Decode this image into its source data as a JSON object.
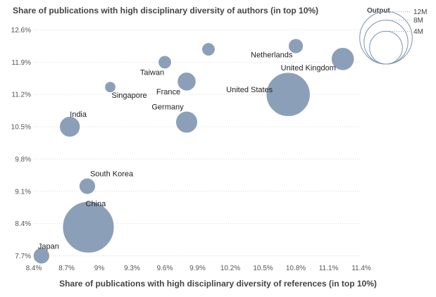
{
  "chart_data": {
    "type": "scatter",
    "title": "Share of publications with high disciplinary diversity of authors (in top 10%)",
    "xlabel": "Share of publications with high disciplinary diversity of references (in top 10%)",
    "ylabel": "Share of publications with high disciplinary diversity of authors (in top 10%)",
    "xlim": [
      8.4,
      11.4
    ],
    "ylim": [
      7.6,
      12.7
    ],
    "x_ticks": [
      "8.4%",
      "8.7%",
      "9%",
      "9.3%",
      "9.6%",
      "9.9%",
      "10.2%",
      "10.5%",
      "10.8%",
      "11.1%",
      "11.4%"
    ],
    "x_tick_values": [
      8.4,
      8.7,
      9.0,
      9.3,
      9.6,
      9.9,
      10.2,
      10.5,
      10.8,
      11.1,
      11.4
    ],
    "y_ticks": [
      "7.7%",
      "8.4%",
      "9.1%",
      "9.8%",
      "10.5%",
      "11.2%",
      "11.9%",
      "12.6%"
    ],
    "y_tick_values": [
      7.7,
      8.4,
      9.1,
      9.8,
      10.5,
      11.2,
      11.9,
      12.6
    ],
    "grid": true,
    "size_legend": {
      "title": "Output",
      "entries": [
        {
          "label": "12M",
          "value": 12
        },
        {
          "label": "8M",
          "value": 8
        },
        {
          "label": "4M",
          "value": 4
        }
      ]
    },
    "points": [
      {
        "label": "Japan",
        "x": 8.47,
        "y": 7.7,
        "output": 0.6
      },
      {
        "label": "China",
        "x": 8.9,
        "y": 8.32,
        "output": 11.5
      },
      {
        "label": "South Korea",
        "x": 8.89,
        "y": 9.21,
        "output": 0.6
      },
      {
        "label": "India",
        "x": 8.73,
        "y": 10.5,
        "output": 1.2
      },
      {
        "label": "Germany",
        "x": 9.8,
        "y": 10.6,
        "output": 1.4
      },
      {
        "label": "Singapore",
        "x": 9.1,
        "y": 11.36,
        "output": 0.15
      },
      {
        "label": "France",
        "x": 9.8,
        "y": 11.48,
        "output": 0.9
      },
      {
        "label": "Taiwan",
        "x": 9.6,
        "y": 11.9,
        "output": 0.3
      },
      {
        "label": "",
        "x": 10.0,
        "y": 12.18,
        "output": 0.3
      },
      {
        "label": "Netherlands",
        "x": 10.8,
        "y": 12.25,
        "output": 0.45
      },
      {
        "label": "United Kingdom",
        "x": 11.23,
        "y": 11.97,
        "output": 1.6
      },
      {
        "label": "United States",
        "x": 10.73,
        "y": 11.2,
        "output": 8.0
      }
    ]
  }
}
